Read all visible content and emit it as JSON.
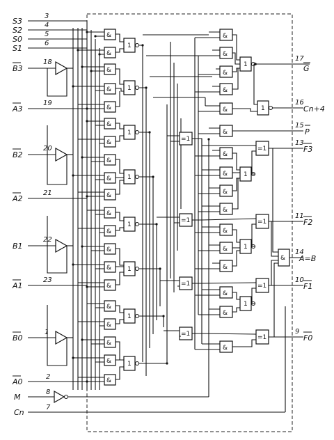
{
  "inputs": [
    {
      "name": "S3",
      "pin": "3",
      "bar": false
    },
    {
      "name": "S2",
      "pin": "4",
      "bar": false
    },
    {
      "name": "S0",
      "pin": "5",
      "bar": false
    },
    {
      "name": "S1",
      "pin": "6",
      "bar": false
    },
    {
      "name": "B3",
      "pin": "18",
      "bar": true
    },
    {
      "name": "A3",
      "pin": "19",
      "bar": true
    },
    {
      "name": "B2",
      "pin": "20",
      "bar": true
    },
    {
      "name": "A2",
      "pin": "21",
      "bar": true
    },
    {
      "name": "B1",
      "pin": "22",
      "bar": false
    },
    {
      "name": "A1",
      "pin": "23",
      "bar": true
    },
    {
      "name": "B0",
      "pin": "1",
      "bar": true
    },
    {
      "name": "A0",
      "pin": "2",
      "bar": true
    },
    {
      "name": "M",
      "pin": "8",
      "bar": false
    },
    {
      "name": "Cn",
      "pin": "7",
      "bar": false
    }
  ],
  "outputs": [
    {
      "name": "G",
      "pin": "17",
      "bar": true
    },
    {
      "name": "Cn+4",
      "pin": "16",
      "bar": false
    },
    {
      "name": "P",
      "pin": "15",
      "bar": true
    },
    {
      "name": "F3",
      "pin": "13",
      "bar": true
    },
    {
      "name": "F2",
      "pin": "11",
      "bar": true
    },
    {
      "name": "A=B",
      "pin": "14",
      "bar": false
    },
    {
      "name": "F1",
      "pin": "10",
      "bar": true
    },
    {
      "name": "F0",
      "pin": "9",
      "bar": true
    }
  ],
  "gate_labels": {
    "and": "&",
    "or": "1",
    "xor": "=1"
  }
}
